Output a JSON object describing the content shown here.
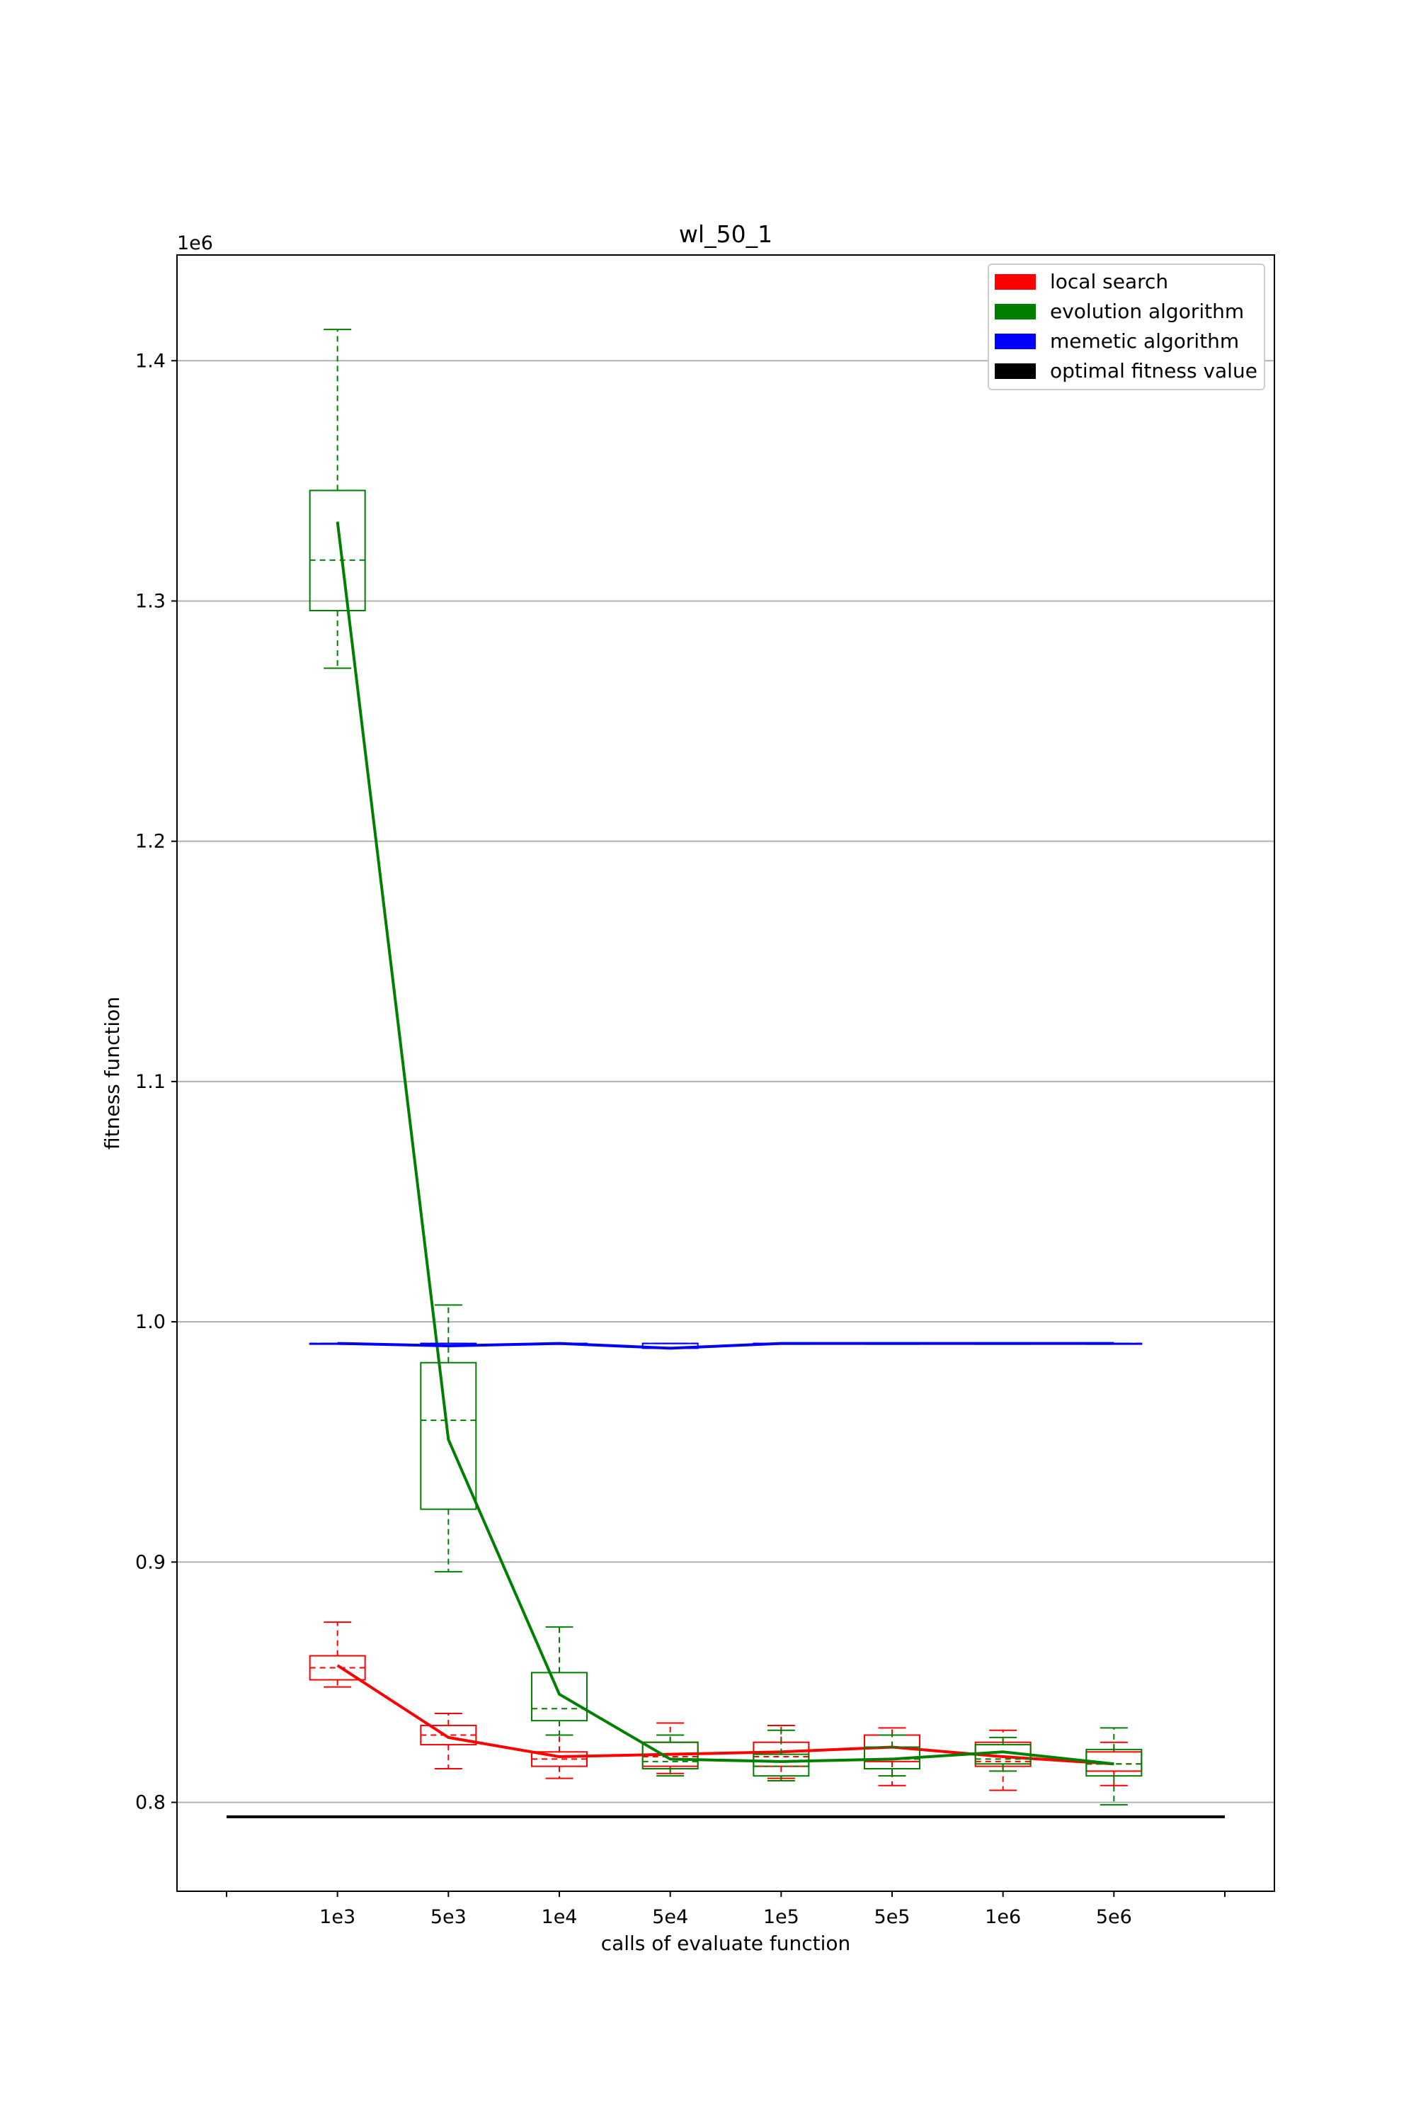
{
  "chart_data": {
    "type": "box",
    "title": "wl_50_1",
    "xlabel": "calls of evaluate function",
    "ylabel": "fitness function",
    "y_offset_label": "1e6",
    "categories": [
      "1e3",
      "5e3",
      "1e4",
      "5e4",
      "1e5",
      "5e5",
      "1e6",
      "5e6"
    ],
    "yticks": [
      "0.8",
      "0.9",
      "1.0",
      "1.1",
      "1.2",
      "1.3",
      "1.4"
    ],
    "ylim": [
      0.763,
      1.444
    ],
    "grid": "horizontal",
    "legend_position": "top-right",
    "legend": [
      {
        "label": "local search",
        "color": "#ff0000"
      },
      {
        "label": "evolution algorithm",
        "color": "#008000"
      },
      {
        "label": "memetic algorithm",
        "color": "#0000ff"
      },
      {
        "label": "optimal fitness value",
        "color": "#000000"
      }
    ],
    "series": [
      {
        "name": "local search",
        "color": "#ff0000",
        "boxes": [
          {
            "min": 0.848,
            "q1": 0.851,
            "median": 0.856,
            "q3": 0.861,
            "max": 0.875
          },
          {
            "min": 0.814,
            "q1": 0.824,
            "median": 0.828,
            "q3": 0.832,
            "max": 0.837
          },
          {
            "min": 0.81,
            "q1": 0.815,
            "median": 0.818,
            "q3": 0.821,
            "max": 0.828
          },
          {
            "min": 0.812,
            "q1": 0.815,
            "median": 0.819,
            "q3": 0.825,
            "max": 0.833
          },
          {
            "min": 0.81,
            "q1": 0.815,
            "median": 0.819,
            "q3": 0.825,
            "max": 0.832
          },
          {
            "min": 0.807,
            "q1": 0.817,
            "median": 0.823,
            "q3": 0.828,
            "max": 0.831
          },
          {
            "min": 0.805,
            "q1": 0.815,
            "median": 0.817,
            "q3": 0.825,
            "max": 0.83
          },
          {
            "min": 0.807,
            "q1": 0.813,
            "median": 0.816,
            "q3": 0.821,
            "max": 0.825
          }
        ],
        "means": [
          0.857,
          0.827,
          0.819,
          0.82,
          0.821,
          0.823,
          0.819,
          0.816
        ]
      },
      {
        "name": "evolution algorithm",
        "color": "#008000",
        "boxes": [
          {
            "min": 1.272,
            "q1": 1.296,
            "median": 1.317,
            "q3": 1.346,
            "max": 1.413
          },
          {
            "min": 0.896,
            "q1": 0.922,
            "median": 0.959,
            "q3": 0.983,
            "max": 1.007
          },
          {
            "min": 0.828,
            "q1": 0.834,
            "median": 0.839,
            "q3": 0.854,
            "max": 0.873
          },
          {
            "min": 0.811,
            "q1": 0.814,
            "median": 0.817,
            "q3": 0.825,
            "max": 0.828
          },
          {
            "min": 0.809,
            "q1": 0.811,
            "median": 0.815,
            "q3": 0.82,
            "max": 0.83
          },
          {
            "min": 0.811,
            "q1": 0.814,
            "median": 0.818,
            "q3": 0.823,
            "max": 0.828
          },
          {
            "min": 0.813,
            "q1": 0.816,
            "median": 0.818,
            "q3": 0.824,
            "max": 0.827
          },
          {
            "min": 0.799,
            "q1": 0.811,
            "median": 0.816,
            "q3": 0.822,
            "max": 0.831
          }
        ],
        "means": [
          1.333,
          0.951,
          0.845,
          0.818,
          0.817,
          0.818,
          0.821,
          0.816
        ]
      },
      {
        "name": "memetic algorithm",
        "color": "#0000ff",
        "boxes": [
          {
            "min": 0.991,
            "q1": 0.991,
            "median": 0.991,
            "q3": 0.991,
            "max": 0.991
          },
          {
            "min": 0.99,
            "q1": 0.99,
            "median": 0.991,
            "q3": 0.991,
            "max": 0.991
          },
          {
            "min": 0.991,
            "q1": 0.991,
            "median": 0.991,
            "q3": 0.991,
            "max": 0.991
          },
          {
            "min": 0.989,
            "q1": 0.989,
            "median": 0.991,
            "q3": 0.991,
            "max": 0.991
          },
          {
            "min": 0.991,
            "q1": 0.991,
            "median": 0.991,
            "q3": 0.991,
            "max": 0.991
          },
          {
            "min": 0.991,
            "q1": 0.991,
            "median": 0.991,
            "q3": 0.991,
            "max": 0.991
          },
          {
            "min": 0.991,
            "q1": 0.991,
            "median": 0.991,
            "q3": 0.991,
            "max": 0.991
          },
          {
            "min": 0.991,
            "q1": 0.991,
            "median": 0.991,
            "q3": 0.991,
            "max": 0.991
          }
        ],
        "means": [
          0.991,
          0.99,
          0.991,
          0.989,
          0.991,
          0.991,
          0.991,
          0.991
        ]
      }
    ],
    "optimal_value": 0.794
  }
}
